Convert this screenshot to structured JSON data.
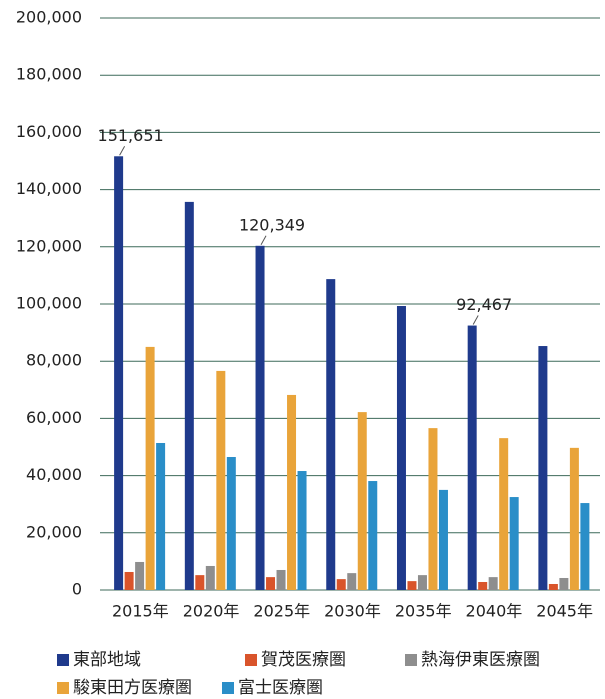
{
  "chart_data": {
    "type": "bar",
    "categories": [
      "2015年",
      "2020年",
      "2025年",
      "2030年",
      "2035年",
      "2040年",
      "2045年"
    ],
    "series": [
      {
        "name": "東部地域",
        "color": "#1f3a8c",
        "values": [
          151651,
          135700,
          120349,
          108700,
          99300,
          92467,
          85300
        ],
        "value_labels": [
          "151,651",
          null,
          "120,349",
          null,
          null,
          "92,467",
          null
        ]
      },
      {
        "name": "賀茂医療圏",
        "color": "#d9542b",
        "values": [
          6300,
          5200,
          4500,
          3800,
          3100,
          2800,
          2100
        ]
      },
      {
        "name": "熱海伊東医療圏",
        "color": "#8e8e8e",
        "values": [
          9800,
          8400,
          7000,
          5900,
          5200,
          4500,
          4200
        ]
      },
      {
        "name": "駿東田方医療圏",
        "color": "#e9a43a",
        "values": [
          85000,
          76600,
          68200,
          62200,
          56600,
          53100,
          49700
        ]
      },
      {
        "name": "富士医療圏",
        "color": "#2a8ec8",
        "values": [
          51400,
          46500,
          41600,
          38100,
          35000,
          32500,
          30400
        ]
      }
    ],
    "ylim": [
      0,
      200000
    ],
    "yticks": [
      0,
      {
        "value": 20000,
        "label": "20,000"
      },
      {
        "value": 40000,
        "label": "40,000"
      },
      {
        "value": 60000,
        "label": "60,000"
      },
      {
        "value": 80000,
        "label": "80,000"
      },
      {
        "value": 100000,
        "label": "100,000"
      },
      {
        "value": 120000,
        "label": "120,000"
      },
      {
        "value": 140000,
        "label": "140,000"
      },
      {
        "value": 160000,
        "label": "160,000"
      },
      {
        "value": 180000,
        "label": "180,000"
      },
      {
        "value": 200000,
        "label": "200,000"
      }
    ],
    "grid": true
  }
}
